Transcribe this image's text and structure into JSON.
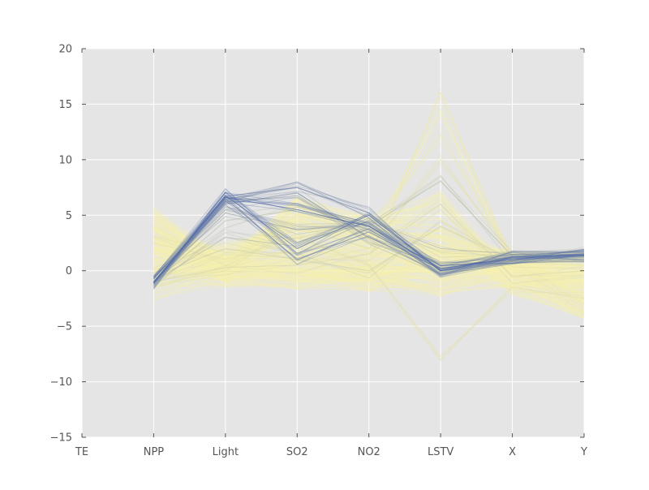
{
  "chart_data": {
    "type": "parallel_coordinates",
    "axes": [
      "TE",
      "NPP",
      "Light",
      "SO2",
      "NO2",
      "LSTV",
      "X",
      "Y"
    ],
    "ylim": [
      -15,
      20
    ],
    "yticks": [
      -15,
      -10,
      -5,
      0,
      5,
      10,
      15,
      20
    ],
    "grid": true,
    "background_color": "#e5e5e5",
    "grid_color": "#ffffff",
    "colormap": {
      "low": "#f6f1b0",
      "high": "#3f5aa6"
    },
    "representative_lines": [
      {
        "level": 0.0,
        "values": [
          null,
          0.2,
          0.1,
          0.0,
          -0.1,
          0.0,
          -0.3,
          -1.0
        ]
      },
      {
        "level": 0.0,
        "values": [
          null,
          1.5,
          0.3,
          1.2,
          2.5,
          14.5,
          0.8,
          0.5
        ]
      },
      {
        "level": 0.05,
        "values": [
          null,
          -0.5,
          0.2,
          2.0,
          1.0,
          16.0,
          1.0,
          -3.0
        ]
      },
      {
        "level": 0.05,
        "values": [
          null,
          4.0,
          0.5,
          5.0,
          3.5,
          12.2,
          1.2,
          -4.0
        ]
      },
      {
        "level": 0.1,
        "values": [
          null,
          -0.8,
          0.0,
          4.0,
          2.0,
          10.0,
          1.5,
          1.4
        ]
      },
      {
        "level": 0.1,
        "values": [
          null,
          2.5,
          1.0,
          3.0,
          0.5,
          -8.0,
          -1.5,
          -2.5
        ]
      },
      {
        "level": 0.15,
        "values": [
          null,
          -1.0,
          0.3,
          0.5,
          1.5,
          6.0,
          -0.5,
          0.0
        ]
      },
      {
        "level": 0.2,
        "values": [
          null,
          -0.5,
          2.0,
          1.0,
          0.0,
          4.0,
          1.0,
          0.8
        ]
      },
      {
        "level": 0.3,
        "values": [
          null,
          -1.1,
          4.5,
          5.5,
          4.0,
          8.1,
          1.3,
          1.4
        ]
      },
      {
        "level": 0.35,
        "values": [
          null,
          -1.0,
          3.0,
          2.2,
          4.5,
          2.0,
          1.5,
          1.5
        ]
      },
      {
        "level": 0.5,
        "values": [
          null,
          -1.0,
          5.2,
          3.7,
          4.2,
          0.0,
          1.2,
          1.4
        ]
      },
      {
        "level": 0.6,
        "values": [
          null,
          -1.1,
          6.0,
          7.0,
          3.0,
          0.2,
          1.0,
          1.3
        ]
      },
      {
        "level": 0.7,
        "values": [
          null,
          -1.1,
          6.7,
          7.5,
          5.2,
          0.0,
          1.0,
          1.4
        ]
      },
      {
        "level": 0.75,
        "values": [
          null,
          -1.0,
          6.5,
          1.0,
          3.5,
          0.1,
          1.3,
          1.4
        ]
      },
      {
        "level": 0.85,
        "values": [
          null,
          -1.1,
          6.8,
          2.0,
          5.0,
          0.0,
          1.2,
          1.5
        ]
      },
      {
        "level": 0.9,
        "values": [
          null,
          -1.0,
          6.6,
          5.5,
          4.0,
          0.2,
          1.1,
          1.4
        ]
      }
    ]
  }
}
